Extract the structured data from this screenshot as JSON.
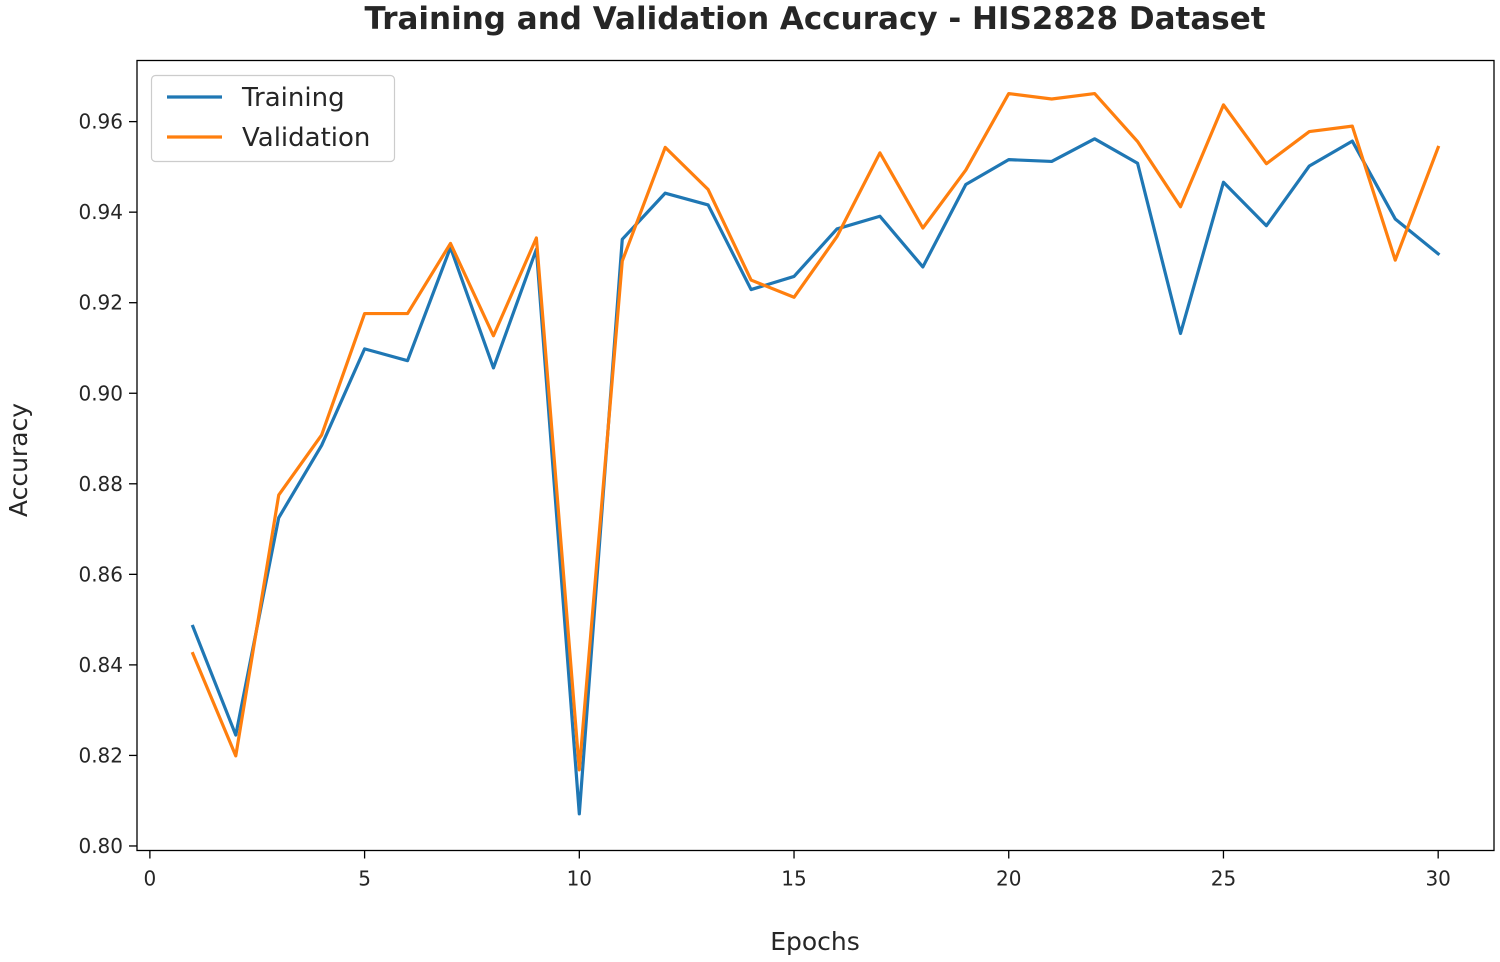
{
  "chart_data": {
    "type": "line",
    "title": "Training and Validation Accuracy - HIS2828 Dataset",
    "xlabel": "Epochs",
    "ylabel": "Accuracy",
    "xlim": [
      -0.3,
      31.3
    ],
    "ylim": [
      0.799,
      0.9735
    ],
    "xticks": [
      0,
      5,
      10,
      15,
      20,
      25,
      30
    ],
    "yticks": [
      0.8,
      0.82,
      0.84,
      0.86,
      0.88,
      0.9,
      0.92,
      0.94,
      0.96
    ],
    "grid": false,
    "legend_position": "top-left",
    "x": [
      1,
      2,
      3,
      4,
      5,
      6,
      7,
      8,
      9,
      10,
      11,
      12,
      13,
      14,
      15,
      16,
      17,
      18,
      19,
      20,
      21,
      22,
      23,
      24,
      25,
      26,
      27,
      28,
      29,
      30
    ],
    "series": [
      {
        "name": "Training",
        "color": "#1f77b4",
        "values": [
          0.8485,
          0.8245,
          0.8725,
          0.8885,
          0.9098,
          0.9072,
          0.9322,
          0.9056,
          0.9318,
          0.8071,
          0.934,
          0.9442,
          0.9416,
          0.9229,
          0.9258,
          0.9363,
          0.9391,
          0.9279,
          0.9461,
          0.9516,
          0.9512,
          0.9562,
          0.9508,
          0.9132,
          0.9466,
          0.937,
          0.9502,
          0.9557,
          0.9385,
          0.9308
        ]
      },
      {
        "name": "Validation",
        "color": "#ff7f0e",
        "values": [
          0.8425,
          0.8199,
          0.8775,
          0.8908,
          0.9176,
          0.9176,
          0.9331,
          0.9127,
          0.9343,
          0.8168,
          0.9292,
          0.9543,
          0.945,
          0.925,
          0.9212,
          0.9346,
          0.9531,
          0.9365,
          0.9493,
          0.9662,
          0.965,
          0.9662,
          0.9556,
          0.9412,
          0.9637,
          0.9507,
          0.9578,
          0.959,
          0.9294,
          0.9543
        ]
      }
    ]
  }
}
